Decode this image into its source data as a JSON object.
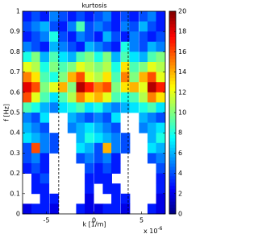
{
  "chart_data": {
    "type": "heatmap",
    "title": "kurtosis",
    "xlabel": "k [1/m]",
    "ylabel": "f [Hz]",
    "x_multiplier": {
      "base": "x 10",
      "exponent": "-6"
    },
    "colormap": "jet",
    "clim": [
      0,
      20
    ],
    "cticks": [
      0,
      2,
      4,
      6,
      8,
      10,
      12,
      14,
      16,
      18,
      20
    ],
    "xlim": [
      -7.5,
      7.5
    ],
    "xticks": [
      -5,
      0,
      5
    ],
    "ylim": [
      0,
      1
    ],
    "yticks": [
      0,
      0.1,
      0.2,
      0.3,
      0.4,
      0.5,
      0.6,
      0.7,
      0.8,
      0.9,
      1
    ],
    "vlines": [
      -3.7,
      3.6
    ],
    "x": [
      -7,
      -6.1,
      -5.2,
      -4.2,
      -3.3,
      -2.3,
      -1.4,
      -0.5,
      0.5,
      1.4,
      2.3,
      3.3,
      4.2,
      5.2,
      6.1,
      7
    ],
    "y": [
      0.975,
      0.925,
      0.875,
      0.825,
      0.775,
      0.725,
      0.675,
      0.625,
      0.575,
      0.525,
      0.475,
      0.425,
      0.375,
      0.325,
      0.275,
      0.225,
      0.175,
      0.125,
      0.075,
      0.025
    ],
    "z": [
      [
        3,
        4,
        3,
        5,
        4,
        3,
        4,
        3,
        4,
        5,
        3,
        4,
        3,
        4,
        5,
        3
      ],
      [
        4,
        5,
        6,
        4,
        3,
        5,
        9,
        4,
        5,
        4,
        3,
        5,
        4,
        6,
        4,
        3
      ],
      [
        3,
        4,
        5,
        8,
        4,
        3,
        5,
        4,
        3,
        6,
        4,
        3,
        5,
        4,
        3,
        4
      ],
      [
        5,
        4,
        3,
        6,
        5,
        4,
        3,
        6,
        5,
        4,
        3,
        8,
        5,
        4,
        6,
        5
      ],
      [
        8,
        10,
        6,
        9,
        7,
        6,
        9,
        10,
        8,
        10,
        6,
        9,
        7,
        6,
        9,
        10
      ],
      [
        12,
        11,
        8,
        10,
        9,
        10,
        12,
        11,
        10,
        11,
        8,
        13,
        9,
        10,
        12,
        11
      ],
      [
        15,
        13,
        9,
        8,
        10,
        14,
        16,
        12,
        11,
        13,
        9,
        15,
        10,
        14,
        16,
        12
      ],
      [
        18,
        16,
        10,
        12,
        14,
        10,
        19,
        17,
        15,
        16,
        10,
        13,
        14,
        12,
        19,
        17
      ],
      [
        16,
        12,
        9,
        7,
        9,
        11,
        15,
        13,
        14,
        12,
        9,
        8,
        9,
        11,
        15,
        13
      ],
      [
        9,
        8,
        6,
        5,
        7,
        8,
        9,
        7,
        8,
        6,
        5,
        6,
        7,
        8,
        9,
        7
      ],
      [
        5,
        4,
        7,
        null,
        null,
        6,
        5,
        4,
        5,
        4,
        7,
        null,
        null,
        6,
        5,
        4
      ],
      [
        6,
        5,
        4,
        null,
        null,
        5,
        6,
        7,
        6,
        5,
        4,
        null,
        null,
        5,
        6,
        7
      ],
      [
        7,
        6,
        5,
        4,
        null,
        null,
        6,
        8,
        7,
        6,
        5,
        4,
        null,
        null,
        6,
        8
      ],
      [
        4,
        16,
        5,
        4,
        null,
        null,
        7,
        6,
        4,
        14,
        5,
        4,
        null,
        null,
        7,
        6
      ],
      [
        4,
        5,
        3,
        null,
        null,
        null,
        4,
        5,
        4,
        5,
        3,
        null,
        null,
        null,
        4,
        5
      ],
      [
        3,
        4,
        3,
        null,
        null,
        null,
        null,
        4,
        3,
        4,
        3,
        null,
        null,
        null,
        null,
        4
      ],
      [
        null,
        3,
        4,
        null,
        null,
        null,
        null,
        3,
        3,
        3,
        null,
        null,
        null,
        null,
        null,
        3
      ],
      [
        null,
        3,
        3,
        null,
        null,
        null,
        null,
        3,
        null,
        3,
        3,
        null,
        null,
        null,
        null,
        3
      ],
      [
        null,
        null,
        3,
        3,
        null,
        null,
        null,
        2,
        null,
        null,
        3,
        3,
        null,
        null,
        null,
        2
      ],
      [
        2,
        3,
        3,
        2,
        null,
        null,
        3,
        2,
        2,
        3,
        3,
        2,
        null,
        null,
        3,
        2
      ]
    ]
  }
}
